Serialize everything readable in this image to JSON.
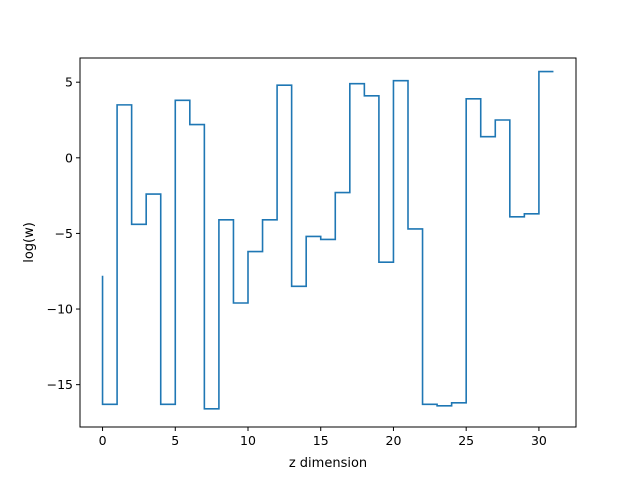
{
  "chart_data": {
    "type": "line",
    "drawstyle": "steps",
    "title": "",
    "xlabel": "z dimension",
    "ylabel": "log(w)",
    "xlim": [
      -1.55,
      32.55
    ],
    "ylim": [
      -17.8,
      6.6
    ],
    "xticks": [
      0,
      5,
      10,
      15,
      20,
      25,
      30
    ],
    "yticks": [
      -15,
      -10,
      -5,
      0,
      5
    ],
    "grid": false,
    "legend": "none",
    "line_color": "#1f77b4",
    "x": [
      0,
      1,
      2,
      3,
      4,
      5,
      6,
      7,
      8,
      9,
      10,
      11,
      12,
      13,
      14,
      15,
      16,
      17,
      18,
      19,
      20,
      21,
      22,
      23,
      24,
      25,
      26,
      27,
      28,
      29,
      30,
      31
    ],
    "values": [
      -7.8,
      -16.3,
      3.5,
      -4.4,
      -2.4,
      -16.3,
      3.8,
      2.2,
      -16.6,
      -4.1,
      -9.6,
      -6.2,
      -4.1,
      4.8,
      -8.5,
      -5.2,
      -5.4,
      -2.3,
      4.9,
      4.1,
      -6.9,
      5.1,
      -4.7,
      -16.3,
      -16.4,
      -16.2,
      3.9,
      1.4,
      2.5,
      -3.9,
      -3.7,
      5.7
    ]
  }
}
